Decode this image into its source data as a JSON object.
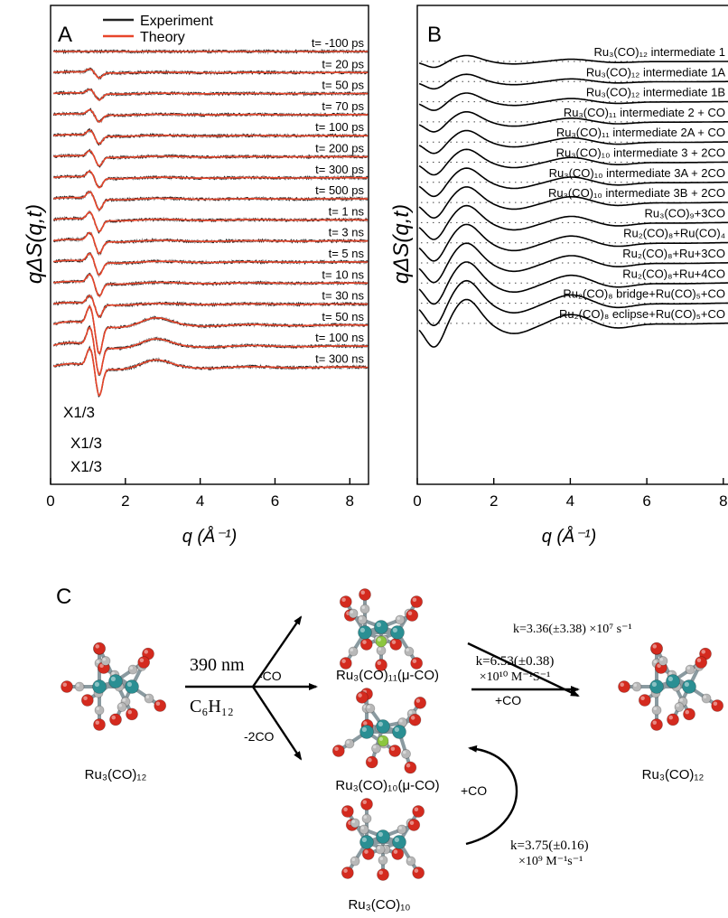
{
  "panel_a": {
    "letter": "A",
    "legend": {
      "experiment": "Experiment",
      "theory": "Theory"
    },
    "times": [
      "t= -100 ps",
      "t= 20 ps",
      "t= 50 ps",
      "t= 70 ps",
      "t= 100 ps",
      "t= 200 ps",
      "t= 300 ps",
      "t= 500 ps",
      "t= 1 ns",
      "t= 3 ns",
      "t= 5 ns",
      "t= 10 ns",
      "t= 30 ns",
      "t= 50 ns",
      "t= 100 ns",
      "t= 300 ns"
    ],
    "scale_labels": [
      "X1/3",
      "X1/3",
      "X1/3"
    ],
    "xlabel": "q (Å⁻¹)",
    "ylabel": "qΔS(q,t)",
    "xticks": [
      "0",
      "2",
      "4",
      "6",
      "8"
    ]
  },
  "panel_b": {
    "letter": "B",
    "curve_labels": [
      "Ru₃(CO)₁₂ intermediate 1",
      "Ru₃(CO)₁₂ intermediate 1A",
      "Ru₃(CO)₁₂ intermediate 1B",
      "Ru₃(CO)₁₁ intermediate 2 + CO",
      "Ru₃(CO)₁₁ intermediate 2A + CO",
      "Ru₃(CO)₁₀ intermediate 3 + 2CO",
      "Ru₃(CO)₁₀ intermediate 3A + 2CO",
      "Ru₃(CO)₁₀ intermediate 3B + 2CO",
      "Ru₃(CO)₉+3CO",
      "Ru₂(CO)₈+Ru(CO)₄",
      "Ru₂(CO)₈+Ru+3CO",
      "Ru₂(CO)₈+Ru+4CO",
      "Ru₂(CO)₈ bridge+Ru(CO)₅+CO",
      "Ru₂(CO)₈ eclipse+Ru(CO)₅+CO"
    ],
    "xlabel": "q (Å⁻¹)",
    "ylabel": "qΔS(q,t)",
    "xticks": [
      "0",
      "2",
      "4",
      "6",
      "8"
    ]
  },
  "panel_c": {
    "letter": "C",
    "reactant": "Ru₃(CO)₁₂",
    "wavelength": "390 nm",
    "solvent": "C₆H₁₂",
    "loss_co": "-CO",
    "loss_2co": "-2CO",
    "intermediate_1": "Ru₃(CO)₁₁(μ-CO)",
    "intermediate_2": "Ru₃(CO)₁₀(μ-CO)",
    "intermediate_3": "Ru₃(CO)₁₀",
    "product": "Ru₃(CO)₁₂",
    "rate_1": "k=3.36(±3.38) ×10⁷ s⁻¹",
    "rate_2_line1": "k=6.53(±0.38)",
    "rate_2_line2": "×10¹⁰ M⁻¹S⁻¹",
    "plus_co": "+CO",
    "plus_co_2": "+CO",
    "rate_3_line1": "k=3.75(±0.16)",
    "rate_3_line2": "×10⁹ M⁻¹s⁻¹"
  },
  "colors": {
    "experiment": "#222222",
    "theory": "#e8452a",
    "noise": "#9a9a9a",
    "ru": "#2a8f93",
    "oxygen": "#d42a1e",
    "carbon": "#b8b8b8",
    "bridge": "#8cc63f"
  }
}
